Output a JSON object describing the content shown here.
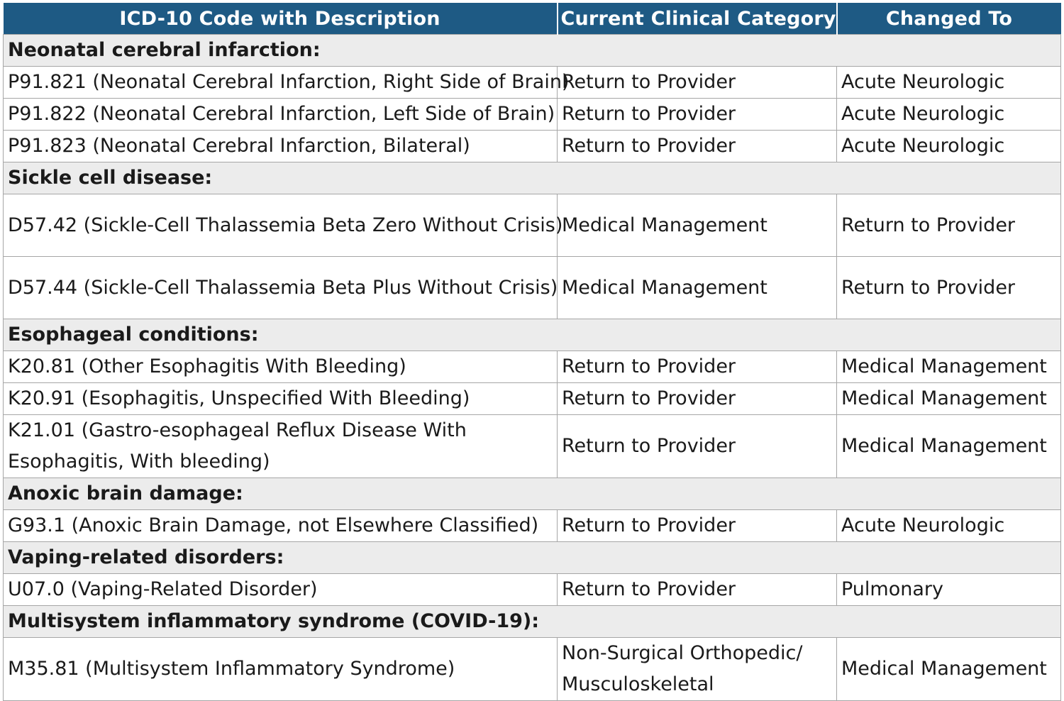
{
  "headers": {
    "code": "ICD-10 Code with Description",
    "current": "Current Clinical Category",
    "changed": "Changed To"
  },
  "groups": [
    {
      "title": "Neonatal cerebral infarction:",
      "rows": [
        {
          "code": "P91.821 (Neonatal Cerebral Infarction, Right Side of Brain)",
          "current": "Return to Provider",
          "changed": "Acute Neurologic"
        },
        {
          "code": "P91.822 (Neonatal Cerebral Infarction, Left Side of Brain)",
          "current": "Return to Provider",
          "changed": "Acute Neurologic"
        },
        {
          "code": "P91.823 (Neonatal Cerebral Infarction, Bilateral)",
          "current": "Return to Provider",
          "changed": "Acute Neurologic"
        }
      ]
    },
    {
      "title": "Sickle cell disease:",
      "rows": [
        {
          "code": "D57.42 (Sickle-Cell Thalassemia Beta Zero Without Crisis)",
          "current": "Medical Management",
          "changed": "Return to Provider"
        },
        {
          "code": "D57.44 (Sickle-Cell Thalassemia Beta Plus Without Crisis)",
          "current": "Medical Management",
          "changed": "Return to Provider"
        }
      ]
    },
    {
      "title": "Esophageal conditions:",
      "rows": [
        {
          "code": "K20.81 (Other Esophagitis With Bleeding)",
          "current": "Return to Provider",
          "changed": "Medical Management"
        },
        {
          "code": "K20.91 (Esophagitis, Unspecified With Bleeding)",
          "current": "Return to Provider",
          "changed": "Medical Management"
        },
        {
          "code_line1": "K21.01 (Gastro-esophageal Reflux Disease With",
          "code_line2": "Esophagitis, With bleeding)",
          "current": "Return to Provider",
          "changed": "Medical Management"
        }
      ]
    },
    {
      "title": "Anoxic brain damage:",
      "rows": [
        {
          "code": "G93.1 (Anoxic Brain Damage, not Elsewhere Classified)",
          "current": "Return to Provider",
          "changed": "Acute Neurologic"
        }
      ]
    },
    {
      "title": "Vaping-related disorders:",
      "rows": [
        {
          "code": "U07.0 (Vaping-Related Disorder)",
          "current": "Return to Provider",
          "changed": "Pulmonary"
        }
      ]
    },
    {
      "title": "Multisystem inflammatory syndrome (COVID-19):",
      "rows": [
        {
          "code": "M35.81 (Multisystem Inflammatory Syndrome)",
          "current_line1": "Non-Surgical Orthopedic/",
          "current_line2": "Musculoskeletal",
          "changed": "Medical Management"
        }
      ]
    }
  ]
}
